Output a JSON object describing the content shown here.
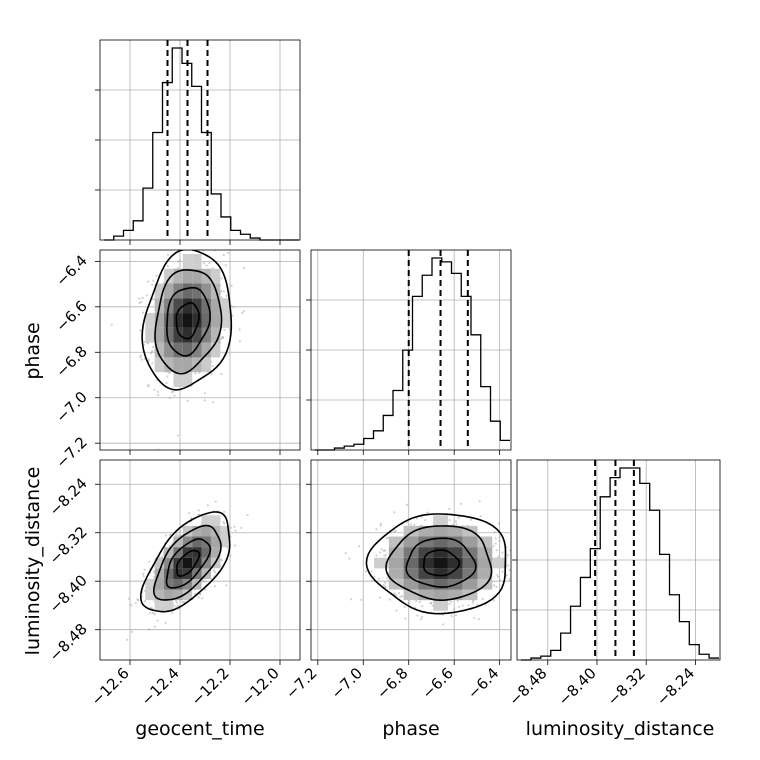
{
  "chart_data": {
    "type": "corner",
    "parameters": [
      "geocent_time",
      "phase",
      "luminosity_distance"
    ],
    "grid": true,
    "axis_ranges": {
      "geocent_time": [
        -12.72,
        -11.92
      ],
      "phase": [
        -7.23,
        -6.35
      ],
      "luminosity_distance": [
        -8.53,
        -8.2
      ]
    },
    "ticks": {
      "geocent_time": {
        "values": [
          -12.6,
          -12.4,
          -12.2,
          -12.0
        ],
        "labels": [
          "−12.6",
          "−12.4",
          "−12.2",
          "−12.0"
        ]
      },
      "phase": {
        "values": [
          -7.2,
          -7.0,
          -6.8,
          -6.6,
          -6.4
        ],
        "labels": [
          "−7.2",
          "−7.0",
          "−6.8",
          "−6.6",
          "−6.4"
        ]
      },
      "luminosity_distance": {
        "values": [
          -8.48,
          -8.4,
          -8.32,
          -8.24
        ],
        "labels": [
          "−8.48",
          "−8.40",
          "−8.32",
          "−8.24"
        ]
      }
    },
    "quantiles": {
      "geocent_time": [
        -12.45,
        -12.37,
        -12.29
      ],
      "phase": [
        -6.8,
        -6.66,
        -6.54
      ],
      "luminosity_distance": [
        -8.403,
        -8.37,
        -8.34
      ]
    },
    "histograms": {
      "geocent_time": [
        0,
        2,
        5,
        10,
        27,
        56,
        82,
        100,
        92,
        80,
        56,
        24,
        12,
        5,
        3,
        1,
        0,
        0,
        0,
        0
      ],
      "phase": [
        0,
        0,
        1,
        2,
        3,
        6,
        10,
        18,
        31,
        52,
        80,
        91,
        100,
        98,
        92,
        80,
        60,
        33,
        15,
        5
      ],
      "luminosity_distance": [
        0,
        1,
        2,
        5,
        14,
        28,
        43,
        58,
        85,
        95,
        100,
        100,
        92,
        78,
        55,
        34,
        20,
        8,
        3,
        1
      ]
    },
    "pairs": [
      {
        "x": "geocent_time",
        "y": "phase",
        "center": [
          -12.37,
          -6.66
        ],
        "sd": [
          0.075,
          0.13
        ],
        "rho": 0.15
      },
      {
        "x": "geocent_time",
        "y": "luminosity_distance",
        "center": [
          -12.37,
          -8.37
        ],
        "sd": [
          0.075,
          0.035
        ],
        "rho": 0.6
      },
      {
        "x": "phase",
        "y": "luminosity_distance",
        "center": [
          -6.66,
          -8.37
        ],
        "sd": [
          0.13,
          0.035
        ],
        "rho": 0.0
      }
    ]
  }
}
